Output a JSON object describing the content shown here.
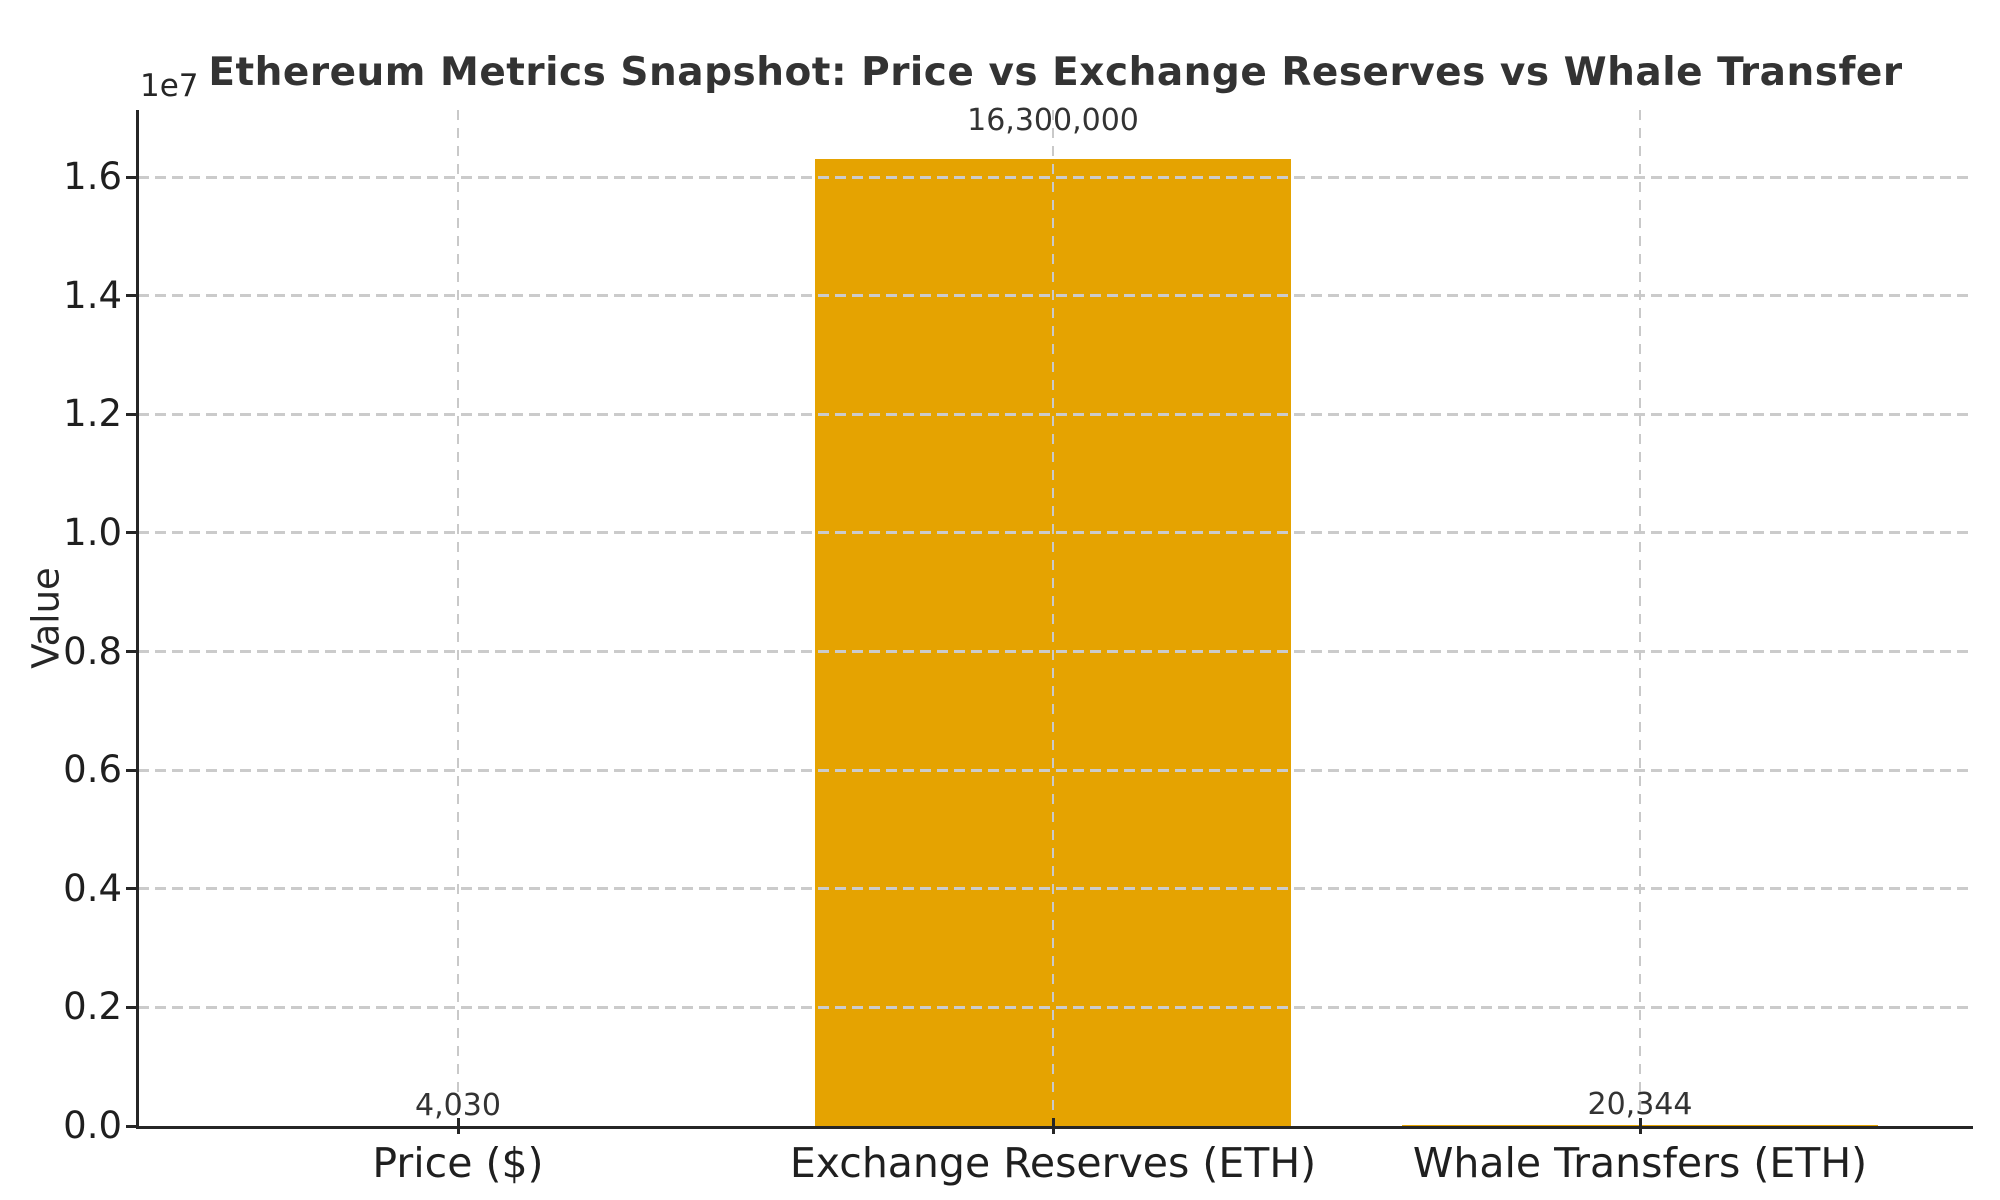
{
  "chart_data": {
    "type": "bar",
    "title": "Ethereum Metrics Snapshot: Price vs Exchange Reserves vs Whale Transfer",
    "ylabel": "Value",
    "xlabel": "",
    "y_offset_label": "1e7",
    "categories": [
      "Price ($)",
      "Exchange Reserves (ETH)",
      "Whale Transfers (ETH)"
    ],
    "values": [
      4030,
      16300000,
      20344
    ],
    "value_labels": [
      "4,030",
      "16,300,000",
      "20,344"
    ],
    "yticks": [
      0,
      2000000,
      4000000,
      6000000,
      8000000,
      10000000,
      12000000,
      14000000,
      16000000
    ],
    "ytick_labels": [
      "0.0",
      "0.2",
      "0.4",
      "0.6",
      "0.8",
      "1.0",
      "1.2",
      "1.4",
      "1.6"
    ],
    "ylim": [
      0,
      17130000
    ],
    "grid": true,
    "grid_style": "dashed",
    "legend": null,
    "colors": {
      "bar": "#E5A301",
      "grid": "#cbcbcb",
      "axis": "#262626",
      "tick_text": "#1f1f1f",
      "title_text": "#333333",
      "background": "#ffffff"
    }
  }
}
